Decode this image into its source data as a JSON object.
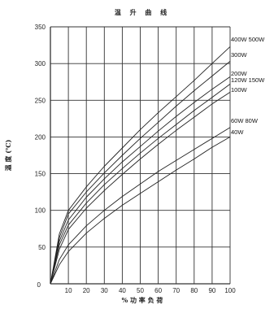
{
  "chart_data": {
    "type": "line",
    "title": "温 升 曲 线",
    "xlabel": "% 功 率 负 荷",
    "ylabel": "温 度 (℃)",
    "xlim": [
      0,
      100
    ],
    "ylim": [
      0,
      350
    ],
    "x_ticks": [
      "0",
      "10",
      "20",
      "30",
      "40",
      "50",
      "60",
      "70",
      "80",
      "90",
      "100"
    ],
    "y_ticks": [
      "0",
      "50",
      "100",
      "150",
      "200",
      "250",
      "300",
      "350"
    ],
    "grid": true,
    "series": [
      {
        "name": "400W 500W",
        "x": [
          0,
          5,
          10,
          20,
          30,
          40,
          50,
          60,
          70,
          80,
          90,
          100
        ],
        "y": [
          0,
          68,
          100,
          132,
          160,
          185,
          210,
          233,
          255,
          277,
          300,
          323
        ]
      },
      {
        "name": "300W",
        "x": [
          0,
          5,
          10,
          20,
          30,
          40,
          50,
          60,
          70,
          80,
          90,
          100
        ],
        "y": [
          0,
          63,
          95,
          125,
          151,
          175,
          198,
          220,
          242,
          263,
          283,
          303
        ]
      },
      {
        "name": "200W",
        "x": [
          0,
          5,
          10,
          20,
          30,
          40,
          50,
          60,
          70,
          80,
          90,
          100
        ],
        "y": [
          0,
          58,
          87,
          118,
          143,
          166,
          187,
          208,
          228,
          247,
          265,
          282
        ]
      },
      {
        "name": "120W 150W",
        "x": [
          0,
          5,
          10,
          20,
          30,
          40,
          50,
          60,
          70,
          80,
          90,
          100
        ],
        "y": [
          0,
          53,
          80,
          110,
          135,
          157,
          178,
          198,
          217,
          236,
          254,
          272
        ]
      },
      {
        "name": "100W",
        "x": [
          0,
          5,
          10,
          20,
          30,
          40,
          50,
          60,
          70,
          80,
          90,
          100
        ],
        "y": [
          0,
          47,
          74,
          103,
          127,
          149,
          170,
          190,
          209,
          227,
          245,
          261
        ]
      },
      {
        "name": "60W 80W",
        "x": [
          0,
          5,
          10,
          20,
          30,
          40,
          50,
          60,
          70,
          80,
          90,
          100
        ],
        "y": [
          0,
          33,
          53,
          79,
          100,
          119,
          136,
          153,
          168,
          183,
          198,
          213
        ]
      },
      {
        "name": "40W",
        "x": [
          0,
          5,
          10,
          20,
          30,
          40,
          50,
          60,
          70,
          80,
          90,
          100
        ],
        "y": [
          0,
          26,
          44,
          69,
          89,
          107,
          123,
          139,
          155,
          170,
          186,
          200
        ]
      }
    ]
  }
}
